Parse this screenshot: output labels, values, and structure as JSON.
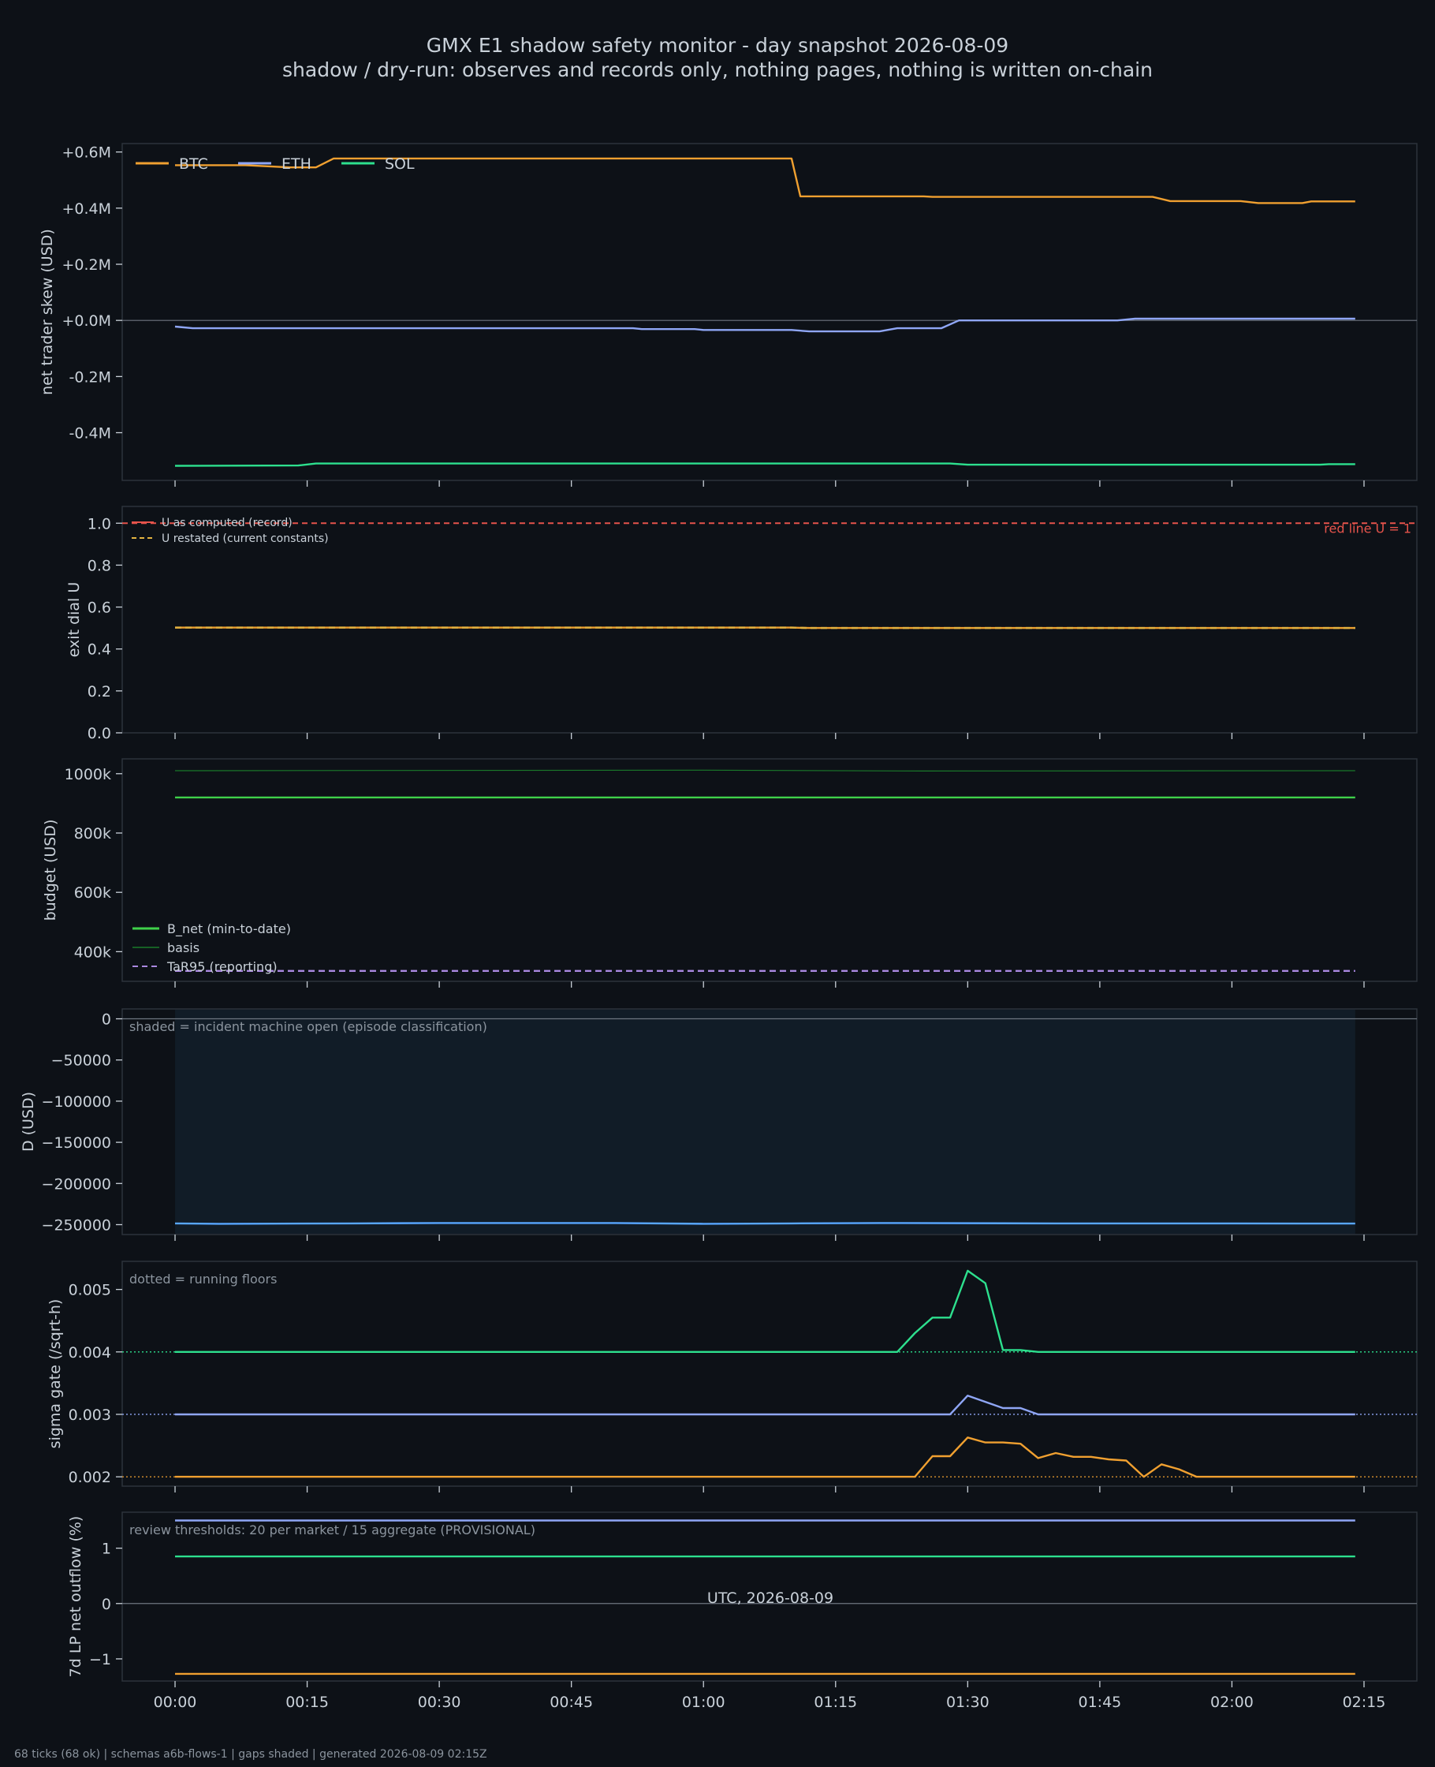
{
  "title": "GMX E1 shadow safety monitor - day snapshot 2026-08-09",
  "subtitle": "shadow / dry-run: observes and records only, nothing pages, nothing is written on-chain",
  "footer": "68 ticks (68 ok) | schemas a6b-flows-1 | gaps shaded | generated 2026-08-09 02:15Z",
  "x_axis": {
    "label": "UTC, 2026-08-09",
    "ticks": [
      "00:00",
      "00:15",
      "00:30",
      "00:45",
      "01:00",
      "01:15",
      "01:30",
      "01:45",
      "02:00",
      "02:15"
    ],
    "range_minutes": [
      -6,
      141
    ],
    "data_range_minutes": [
      0,
      134
    ]
  },
  "colors": {
    "btc": "#f0a030",
    "eth": "#8fa6f5",
    "sol": "#2de08e",
    "green": "#3fd14a",
    "basis": "#1a7a2a",
    "tar": "#a988e0",
    "d": "#58a6ff",
    "red": "#e5534b",
    "yellow": "#e3b341",
    "grid": "#2d333b",
    "zero": "#6e7681"
  },
  "chart_data": [
    {
      "type": "line",
      "id": "skew",
      "ylabel": "net trader skew (USD)",
      "ylim": [
        -0.57,
        0.63
      ],
      "yticks": [
        0.6,
        0.4,
        0.2,
        0.0,
        -0.2,
        -0.4
      ],
      "ytick_labels": [
        "+0.6M",
        "+0.4M",
        "+0.2M",
        "+0.0M",
        "-0.2M",
        "-0.4M"
      ],
      "zero_line": 0,
      "legend": [
        "BTC",
        "ETH",
        "SOL"
      ],
      "series": [
        {
          "name": "BTC",
          "color": "btc",
          "points": [
            [
              0,
              0.553
            ],
            [
              8,
              0.553
            ],
            [
              13,
              0.545
            ],
            [
              16,
              0.545
            ],
            [
              18,
              0.577
            ],
            [
              40,
              0.577
            ],
            [
              70,
              0.577
            ],
            [
              71,
              0.442
            ],
            [
              85,
              0.442
            ],
            [
              86,
              0.44
            ],
            [
              111,
              0.44
            ],
            [
              113,
              0.425
            ],
            [
              121,
              0.425
            ],
            [
              123,
              0.418
            ],
            [
              128,
              0.418
            ],
            [
              129,
              0.424
            ],
            [
              134,
              0.424
            ]
          ]
        },
        {
          "name": "ETH",
          "color": "eth",
          "points": [
            [
              0,
              -0.022
            ],
            [
              2,
              -0.028
            ],
            [
              52,
              -0.028
            ],
            [
              53,
              -0.031
            ],
            [
              59,
              -0.031
            ],
            [
              60,
              -0.034
            ],
            [
              70,
              -0.034
            ],
            [
              72,
              -0.039
            ],
            [
              80,
              -0.039
            ],
            [
              82,
              -0.028
            ],
            [
              87,
              -0.028
            ],
            [
              89,
              0.0
            ],
            [
              107,
              0.0
            ],
            [
              109,
              0.006
            ],
            [
              134,
              0.006
            ]
          ]
        },
        {
          "name": "SOL",
          "color": "sol",
          "points": [
            [
              0,
              -0.518
            ],
            [
              14,
              -0.517
            ],
            [
              16,
              -0.51
            ],
            [
              88,
              -0.51
            ],
            [
              90,
              -0.514
            ],
            [
              130,
              -0.514
            ],
            [
              131,
              -0.512
            ],
            [
              134,
              -0.512
            ]
          ]
        }
      ]
    },
    {
      "type": "line",
      "id": "exit_dial",
      "ylabel": "exit dial U",
      "ylim": [
        0.0,
        1.08
      ],
      "yticks": [
        1.0,
        0.8,
        0.6,
        0.4,
        0.2,
        0.0
      ],
      "ytick_labels": [
        "1.0",
        "0.8",
        "0.6",
        "0.4",
        "0.2",
        "0.0"
      ],
      "legend": [
        "U as computed (record)",
        "U restated (current constants)"
      ],
      "annotation": "red line U = 1",
      "series": [
        {
          "name": "U as computed (record)",
          "color": "btc",
          "points": [
            [
              0,
              0.502
            ],
            [
              70,
              0.502
            ],
            [
              72,
              0.5
            ],
            [
              134,
              0.5
            ]
          ]
        },
        {
          "name": "U restated (current constants)",
          "color": "yellow",
          "dashed": true,
          "points": [
            [
              0,
              0.502
            ],
            [
              70,
              0.502
            ],
            [
              72,
              0.5
            ],
            [
              134,
              0.5
            ]
          ]
        }
      ],
      "hlines": [
        {
          "y": 1.0,
          "color": "red",
          "dashed": true
        }
      ]
    },
    {
      "type": "line",
      "id": "budget",
      "ylabel": "budget (USD)",
      "ylim": [
        300000,
        1050000
      ],
      "yticks": [
        1000000,
        800000,
        600000,
        400000
      ],
      "ytick_labels": [
        "1000k",
        "800k",
        "600k",
        "400k"
      ],
      "legend": [
        "B_net (min-to-date)",
        "basis",
        "TaR95 (reporting)"
      ],
      "series": [
        {
          "name": "B_net (min-to-date)",
          "color": "green",
          "points": [
            [
              0,
              920000
            ],
            [
              134,
              920000
            ]
          ]
        },
        {
          "name": "basis",
          "color": "basis",
          "thin": true,
          "points": [
            [
              0,
              1010000
            ],
            [
              60,
              1012000
            ],
            [
              85,
              1009000
            ],
            [
              134,
              1010000
            ]
          ]
        },
        {
          "name": "TaR95 (reporting)",
          "color": "tar",
          "dashed": true,
          "points": [
            [
              0,
              335000
            ],
            [
              134,
              335000
            ]
          ]
        }
      ]
    },
    {
      "type": "line",
      "id": "d_usd",
      "ylabel": "D (USD)",
      "ylim": [
        -262000,
        12000
      ],
      "yticks": [
        0,
        -50000,
        -100000,
        -150000,
        -200000,
        -250000
      ],
      "ytick_labels": [
        "0",
        "−50000",
        "−100000",
        "−150000",
        "−200000",
        "−250000"
      ],
      "zero_line": 0,
      "note": "shaded = incident machine open (episode classification)",
      "shade": [
        0,
        134
      ],
      "series": [
        {
          "name": "D",
          "color": "d",
          "points": [
            [
              0,
              -248500
            ],
            [
              5,
              -249000
            ],
            [
              20,
              -248500
            ],
            [
              30,
              -248000
            ],
            [
              50,
              -248000
            ],
            [
              60,
              -249000
            ],
            [
              70,
              -248500
            ],
            [
              80,
              -248000
            ],
            [
              100,
              -248500
            ],
            [
              120,
              -248500
            ],
            [
              134,
              -248700
            ]
          ]
        }
      ]
    },
    {
      "type": "line",
      "id": "sigma",
      "ylabel": "sigma gate (/sqrt-h)",
      "ylim": [
        0.00185,
        0.00545
      ],
      "yticks": [
        0.005,
        0.004,
        0.003,
        0.002
      ],
      "ytick_labels": [
        "0.005",
        "0.004",
        "0.003",
        "0.002"
      ],
      "note": "dotted = running floors",
      "series": [
        {
          "name": "SOL",
          "color": "sol",
          "points": [
            [
              0,
              0.004
            ],
            [
              82,
              0.004
            ],
            [
              84,
              0.0043
            ],
            [
              86,
              0.00455
            ],
            [
              88,
              0.00455
            ],
            [
              90,
              0.0053
            ],
            [
              92,
              0.0051
            ],
            [
              94,
              0.00403
            ],
            [
              96,
              0.00403
            ],
            [
              98,
              0.004
            ],
            [
              134,
              0.004
            ]
          ]
        },
        {
          "name": "ETH",
          "color": "eth",
          "points": [
            [
              0,
              0.003
            ],
            [
              88,
              0.003
            ],
            [
              90,
              0.0033
            ],
            [
              92,
              0.0032
            ],
            [
              94,
              0.0031
            ],
            [
              96,
              0.0031
            ],
            [
              98,
              0.003
            ],
            [
              134,
              0.003
            ]
          ]
        },
        {
          "name": "BTC",
          "color": "btc",
          "points": [
            [
              0,
              0.002
            ],
            [
              84,
              0.002
            ],
            [
              86,
              0.00233
            ],
            [
              88,
              0.00233
            ],
            [
              90,
              0.00263
            ],
            [
              92,
              0.00255
            ],
            [
              94,
              0.00255
            ],
            [
              96,
              0.00253
            ],
            [
              98,
              0.0023
            ],
            [
              100,
              0.00238
            ],
            [
              102,
              0.00232
            ],
            [
              104,
              0.00232
            ],
            [
              106,
              0.00228
            ],
            [
              108,
              0.00226
            ],
            [
              110,
              0.002
            ],
            [
              112,
              0.0022
            ],
            [
              114,
              0.00212
            ],
            [
              116,
              0.002
            ],
            [
              134,
              0.002
            ]
          ]
        }
      ],
      "hlines": [
        {
          "y": 0.004,
          "color": "sol",
          "dotted": true
        },
        {
          "y": 0.003,
          "color": "eth",
          "dotted": true
        },
        {
          "y": 0.002,
          "color": "btc",
          "dotted": true
        }
      ]
    },
    {
      "type": "line",
      "id": "outflow",
      "ylabel": "7d LP net outflow (%)",
      "ylim": [
        -1.4,
        1.65
      ],
      "yticks": [
        1,
        0,
        -1
      ],
      "ytick_labels": [
        "1",
        "0",
        "−1"
      ],
      "zero_line": 0,
      "note": "review thresholds: 20 per market / 15 aggregate (PROVISIONAL)",
      "series": [
        {
          "name": "ETH",
          "color": "eth",
          "points": [
            [
              0,
              1.5
            ],
            [
              134,
              1.5
            ]
          ]
        },
        {
          "name": "SOL",
          "color": "sol",
          "points": [
            [
              0,
              0.85
            ],
            [
              134,
              0.85
            ]
          ]
        },
        {
          "name": "BTC",
          "color": "btc",
          "points": [
            [
              0,
              -1.27
            ],
            [
              134,
              -1.27
            ]
          ]
        }
      ]
    }
  ]
}
